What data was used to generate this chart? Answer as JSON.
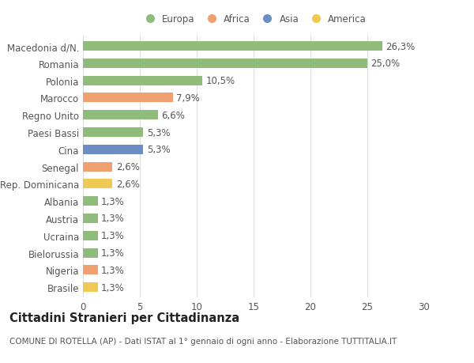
{
  "categories": [
    "Brasile",
    "Nigeria",
    "Bielorussia",
    "Ucraina",
    "Austria",
    "Albania",
    "Rep. Dominicana",
    "Senegal",
    "Cina",
    "Paesi Bassi",
    "Regno Unito",
    "Marocco",
    "Polonia",
    "Romania",
    "Macedonia d/N."
  ],
  "values": [
    1.3,
    1.3,
    1.3,
    1.3,
    1.3,
    1.3,
    2.6,
    2.6,
    5.3,
    5.3,
    6.6,
    7.9,
    10.5,
    25.0,
    26.3
  ],
  "colors": [
    "#f0c955",
    "#f0a070",
    "#8fbc7a",
    "#8fbc7a",
    "#8fbc7a",
    "#8fbc7a",
    "#f0c955",
    "#f0a070",
    "#6b8dc4",
    "#8fbc7a",
    "#8fbc7a",
    "#f0a070",
    "#8fbc7a",
    "#8fbc7a",
    "#8fbc7a"
  ],
  "labels": [
    "1,3%",
    "1,3%",
    "1,3%",
    "1,3%",
    "1,3%",
    "1,3%",
    "2,6%",
    "2,6%",
    "5,3%",
    "5,3%",
    "6,6%",
    "7,9%",
    "10,5%",
    "25,0%",
    "26,3%"
  ],
  "xlim": [
    0,
    30
  ],
  "title": "Cittadini Stranieri per Cittadinanza",
  "subtitle": "COMUNE DI ROTELLA (AP) - Dati ISTAT al 1° gennaio di ogni anno - Elaborazione TUTTITALIA.IT",
  "legend_labels": [
    "Europa",
    "Africa",
    "Asia",
    "America"
  ],
  "legend_colors": [
    "#8fbc7a",
    "#f0a070",
    "#6b8dc4",
    "#f0c955"
  ],
  "bg_color": "#ffffff",
  "grid_color": "#dddddd",
  "bar_height": 0.55,
  "label_fontsize": 8.5,
  "tick_fontsize": 8.5,
  "title_fontsize": 10.5,
  "subtitle_fontsize": 7.5
}
